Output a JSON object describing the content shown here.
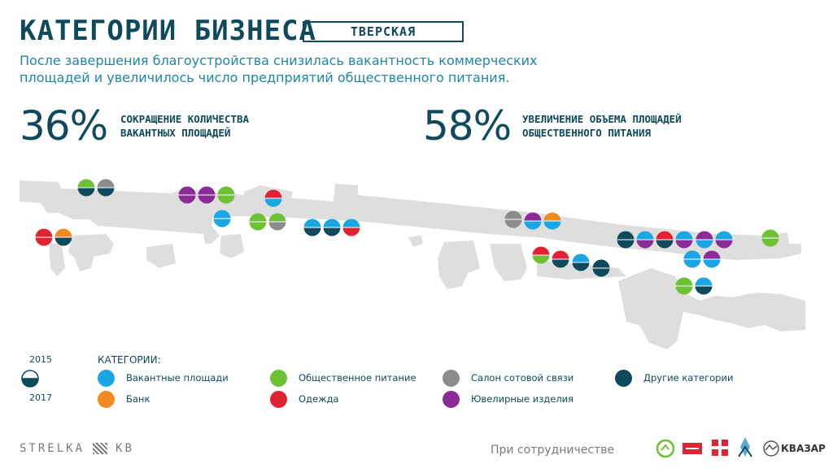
{
  "header": {
    "title": "КАТЕГОРИИ БИЗНЕСА",
    "street": "ТВЕРСКАЯ",
    "subtitle": "После завершения благоустройства снизилась вакантность коммерческих площадей и увеличилось число предприятий общественного питания."
  },
  "stats": [
    {
      "value": "36%",
      "label": "СОКРАЩЕНИЕ КОЛИЧЕСТВА ВАКАНТНЫХ ПЛОЩАДЕЙ"
    },
    {
      "value": "58%",
      "label": "УВЕЛИЧЕНИЕ ОБЪЕМА ПЛОЩАДЕЙ ОБЩЕСТВЕННОГО ПИТАНИЯ"
    }
  ],
  "legend": {
    "title": "КАТЕГОРИИ:",
    "year_top": "2015",
    "year_bottom": "2017",
    "items": [
      {
        "key": "vacant",
        "label": "Вакантные площади",
        "color": "#1aa6e4"
      },
      {
        "key": "bank",
        "label": "Банк",
        "color": "#f08a22"
      },
      {
        "key": "food",
        "label": "Общественное питание",
        "color": "#6cc234"
      },
      {
        "key": "clothes",
        "label": "Одежда",
        "color": "#e02232"
      },
      {
        "key": "mobile",
        "label": "Салон сотовой связи",
        "color": "#8c8c8c"
      },
      {
        "key": "jewelry",
        "label": "Ювелирные изделия",
        "color": "#8b2b96"
      },
      {
        "key": "other",
        "label": "Другие категории",
        "color": "#0e4a5c"
      }
    ]
  },
  "map_markers": [
    {
      "top": "food",
      "bottom": "other"
    },
    {
      "top": "mobile",
      "bottom": "other"
    },
    {
      "top": "jewelry",
      "bottom": "jewelry"
    },
    {
      "top": "jewelry",
      "bottom": "jewelry"
    },
    {
      "top": "food",
      "bottom": "food"
    },
    {
      "top": "clothes",
      "bottom": "vacant"
    },
    {
      "top": "clothes",
      "bottom": "clothes"
    },
    {
      "top": "bank",
      "bottom": "other"
    },
    {
      "top": "vacant",
      "bottom": "vacant"
    },
    {
      "top": "food",
      "bottom": "food"
    },
    {
      "top": "food",
      "bottom": "mobile"
    },
    {
      "top": "vacant",
      "bottom": "other"
    },
    {
      "top": "vacant",
      "bottom": "other"
    },
    {
      "top": "vacant",
      "bottom": "clothes"
    },
    {
      "top": "mobile",
      "bottom": "mobile"
    },
    {
      "top": "jewelry",
      "bottom": "vacant"
    },
    {
      "top": "bank",
      "bottom": "vacant"
    },
    {
      "top": "other",
      "bottom": "other"
    },
    {
      "top": "vacant",
      "bottom": "jewelry"
    },
    {
      "top": "clothes",
      "bottom": "other"
    },
    {
      "top": "vacant",
      "bottom": "jewelry"
    },
    {
      "top": "jewelry",
      "bottom": "vacant"
    },
    {
      "top": "vacant",
      "bottom": "jewelry"
    },
    {
      "top": "food",
      "bottom": "food"
    },
    {
      "top": "vacant",
      "bottom": "jewelry"
    },
    {
      "top": "clothes",
      "bottom": "food"
    },
    {
      "top": "clothes",
      "bottom": "other"
    },
    {
      "top": "vacant",
      "bottom": "other"
    },
    {
      "top": "other",
      "bottom": "other"
    },
    {
      "top": "jewelry",
      "bottom": "vacant"
    },
    {
      "top": "vacant",
      "bottom": "vacant"
    },
    {
      "top": "food",
      "bottom": "food"
    },
    {
      "top": "vacant",
      "bottom": "other"
    }
  ],
  "footer": {
    "brand_left": "STRELKA",
    "brand_right": "KB",
    "partner_text": "При сотрудничестве",
    "kvazar": "КВАЗАР"
  }
}
